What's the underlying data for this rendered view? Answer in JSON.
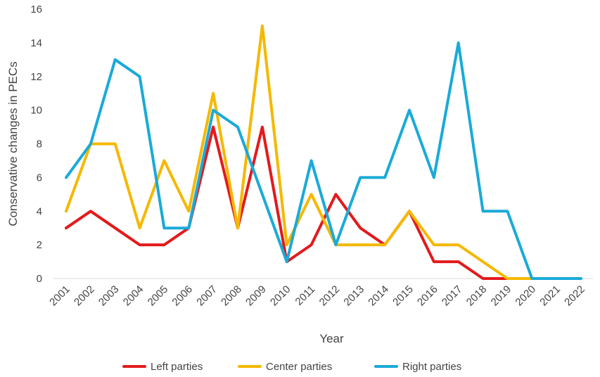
{
  "chart_data": {
    "type": "line",
    "title": "",
    "xlabel": "Year",
    "ylabel": "Conservative changes in PECs",
    "ylim": [
      0,
      16
    ],
    "yticks": [
      0,
      2,
      4,
      6,
      8,
      10,
      12,
      14,
      16
    ],
    "grid": false,
    "legend_position": "bottom",
    "categories": [
      "2001",
      "2002",
      "2003",
      "2004",
      "2005",
      "2006",
      "2007",
      "2008",
      "2009",
      "2010",
      "2011",
      "2012",
      "2013",
      "2014",
      "2015",
      "2016",
      "2017",
      "2018",
      "2019",
      "2020",
      "2021",
      "2022"
    ],
    "series": [
      {
        "name": "Left parties",
        "color": "#e31a1c",
        "values": [
          3,
          4,
          3,
          2,
          2,
          3,
          9,
          3,
          9,
          1,
          2,
          5,
          3,
          2,
          4,
          1,
          1,
          0,
          0,
          null,
          null,
          null
        ]
      },
      {
        "name": "Center parties",
        "color": "#f5b800",
        "values": [
          4,
          8,
          8,
          3,
          7,
          4,
          11,
          3,
          15,
          2,
          5,
          2,
          2,
          2,
          4,
          2,
          2,
          1,
          0,
          0,
          null,
          null
        ]
      },
      {
        "name": "Right parties",
        "color": "#1aaad8",
        "values": [
          6,
          8,
          13,
          12,
          3,
          3,
          10,
          9,
          5,
          1,
          7,
          2,
          6,
          6,
          10,
          6,
          14,
          4,
          4,
          0,
          0,
          0
        ]
      }
    ]
  }
}
